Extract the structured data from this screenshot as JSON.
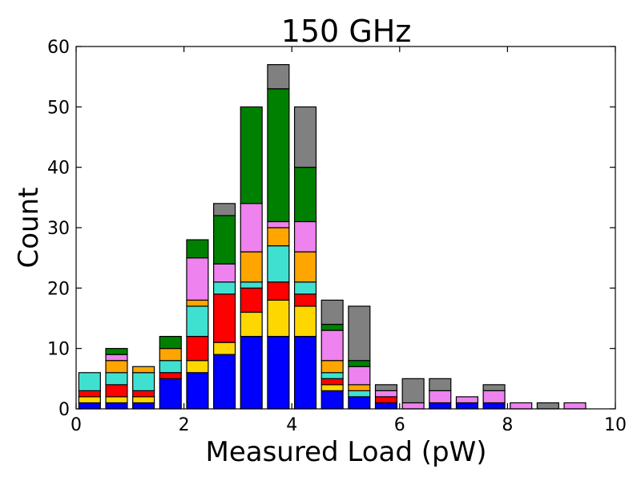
{
  "chart_data": {
    "type": "bar",
    "stacked": true,
    "title": "150 GHz",
    "xlabel": "Measured Load (pW)",
    "ylabel": "Count",
    "xlim": [
      0,
      10
    ],
    "ylim": [
      0,
      60
    ],
    "xticks": [
      0,
      2,
      4,
      6,
      8,
      10
    ],
    "yticks": [
      0,
      10,
      20,
      30,
      40,
      50,
      60
    ],
    "grid": false,
    "legend": "none",
    "bin_width": 0.4,
    "bin_centers": [
      0.25,
      0.75,
      1.25,
      1.75,
      2.25,
      2.75,
      3.25,
      3.75,
      4.25,
      4.75,
      5.25,
      5.75,
      6.25,
      6.75,
      7.25,
      7.75,
      8.25,
      8.75,
      9.25
    ],
    "series": [
      {
        "color": "#0000ff",
        "values": [
          1,
          1,
          1,
          5,
          6,
          9,
          12,
          12,
          12,
          3,
          2,
          1,
          0,
          1,
          1,
          1,
          0,
          0,
          0
        ]
      },
      {
        "color": "#ffd700",
        "values": [
          1,
          1,
          1,
          0,
          2,
          2,
          4,
          6,
          5,
          1,
          0,
          0,
          0,
          0,
          0,
          0,
          0,
          0,
          0
        ]
      },
      {
        "color": "#ff0000",
        "values": [
          1,
          2,
          1,
          1,
          4,
          8,
          4,
          3,
          2,
          1,
          0,
          1,
          0,
          0,
          0,
          0,
          0,
          0,
          0
        ]
      },
      {
        "color": "#40e0d0",
        "values": [
          3,
          2,
          3,
          2,
          5,
          2,
          1,
          6,
          2,
          1,
          1,
          0,
          0,
          0,
          0,
          0,
          0,
          0,
          0
        ]
      },
      {
        "color": "#ffa500",
        "values": [
          0,
          2,
          1,
          2,
          1,
          0,
          5,
          3,
          5,
          2,
          1,
          0,
          0,
          0,
          0,
          0,
          0,
          0,
          0
        ]
      },
      {
        "color": "#ee82ee",
        "values": [
          0,
          1,
          0,
          0,
          7,
          3,
          8,
          1,
          5,
          5,
          3,
          1,
          1,
          2,
          1,
          2,
          1,
          0,
          1
        ]
      },
      {
        "color": "#008000",
        "values": [
          0,
          1,
          0,
          2,
          3,
          8,
          16,
          22,
          9,
          1,
          1,
          0,
          0,
          0,
          0,
          0,
          0,
          0,
          0
        ]
      },
      {
        "color": "#808080",
        "values": [
          0,
          0,
          0,
          0,
          0,
          2,
          0,
          4,
          10,
          4,
          9,
          1,
          4,
          2,
          0,
          1,
          0,
          1,
          0
        ]
      }
    ]
  }
}
